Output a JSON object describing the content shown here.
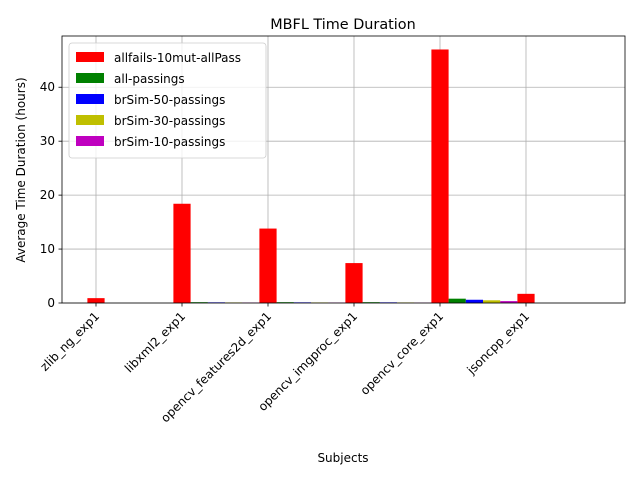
{
  "chart_data": {
    "type": "bar",
    "title": "MBFL Time Duration",
    "xlabel": "Subjects",
    "ylabel": "Average Time Duration (hours)",
    "categories": [
      "zlib_ng_exp1",
      "libxml2_exp1",
      "opencv_features2d_exp1",
      "opencv_imgproc_exp1",
      "opencv_core_exp1",
      "jsoncpp_exp1"
    ],
    "ylim": [
      0,
      49.5
    ],
    "yticks": [
      0,
      10,
      20,
      30,
      40
    ],
    "grid": true,
    "legend_position": "top-left",
    "series": [
      {
        "name": "allfails-10mut-allPass",
        "color": "#ff0000",
        "values": [
          0.9,
          18.4,
          13.8,
          7.4,
          47.0,
          1.7
        ]
      },
      {
        "name": "all-passings",
        "color": "#008000",
        "values": [
          0,
          0.15,
          0.15,
          0.15,
          0.8,
          0
        ]
      },
      {
        "name": "brSim-50-passings",
        "color": "#0000ff",
        "values": [
          0,
          0.12,
          0.12,
          0.12,
          0.6,
          0
        ]
      },
      {
        "name": "brSim-30-passings",
        "color": "#bfbf00",
        "values": [
          0,
          0.1,
          0.1,
          0.1,
          0.5,
          0
        ]
      },
      {
        "name": "brSim-10-passings",
        "color": "#bf00bf",
        "values": [
          0,
          0.08,
          0.08,
          0.05,
          0.35,
          0
        ]
      }
    ]
  }
}
